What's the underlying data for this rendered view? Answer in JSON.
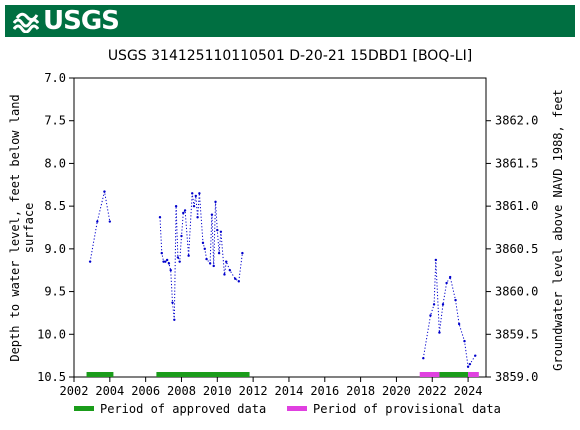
{
  "banner": {
    "logo_text": "USGS",
    "color": "#006f41"
  },
  "chart_data": {
    "type": "scatter",
    "title": "USGS 314125110110501 D-20-21 15DBD1 [BOQ-LI]",
    "ylabel_left_line1": "Depth to water level, feet below land",
    "ylabel_left_line2": "surface",
    "ylabel_right": "Groundwater level above NAVD 1988, feet",
    "xlim": [
      2002,
      2025
    ],
    "ylim_left": [
      7.0,
      10.5
    ],
    "ylim_right": [
      3859.0,
      3862.5
    ],
    "x_ticks": [
      2002,
      2004,
      2006,
      2008,
      2010,
      2012,
      2014,
      2016,
      2018,
      2020,
      2022,
      2024
    ],
    "y_ticks_left": [
      "7.0",
      "7.5",
      "8.0",
      "8.5",
      "9.0",
      "9.5",
      "10.0",
      "10.5"
    ],
    "y_ticks_right": [
      "3862.0",
      "3861.5",
      "3861.0",
      "3860.5",
      "3860.0",
      "3859.5",
      "3859.0"
    ],
    "y_tick_values_left": [
      7.0,
      7.5,
      8.0,
      8.5,
      9.0,
      9.5,
      10.0,
      10.5
    ],
    "y_tick_values_right": [
      3862.0,
      3861.5,
      3861.0,
      3860.5,
      3860.0,
      3859.5,
      3859.0
    ],
    "series_color": "#0000cc",
    "segments": [
      [
        [
          2002.9,
          9.15
        ],
        [
          2003.3,
          8.68
        ],
        [
          2003.7,
          8.33
        ],
        [
          2004.0,
          8.68
        ]
      ],
      [
        [
          2006.8,
          8.63
        ],
        [
          2006.9,
          9.05
        ],
        [
          2007.0,
          9.15
        ],
        [
          2007.1,
          9.15
        ],
        [
          2007.2,
          9.13
        ],
        [
          2007.3,
          9.17
        ],
        [
          2007.4,
          9.25
        ],
        [
          2007.5,
          9.63
        ],
        [
          2007.6,
          9.83
        ],
        [
          2007.7,
          8.5
        ],
        [
          2007.8,
          9.1
        ],
        [
          2007.9,
          9.15
        ],
        [
          2008.0,
          8.85
        ],
        [
          2008.1,
          8.58
        ],
        [
          2008.2,
          8.55
        ],
        [
          2008.4,
          9.08
        ],
        [
          2008.6,
          8.35
        ],
        [
          2008.7,
          8.5
        ],
        [
          2008.8,
          8.38
        ],
        [
          2008.9,
          8.63
        ],
        [
          2009.0,
          8.35
        ],
        [
          2009.2,
          8.93
        ],
        [
          2009.3,
          9.0
        ],
        [
          2009.4,
          9.12
        ],
        [
          2009.6,
          9.17
        ],
        [
          2009.7,
          8.6
        ],
        [
          2009.8,
          9.2
        ],
        [
          2009.9,
          8.45
        ],
        [
          2010.0,
          8.78
        ],
        [
          2010.1,
          9.05
        ],
        [
          2010.2,
          8.8
        ],
        [
          2010.4,
          9.3
        ],
        [
          2010.5,
          9.15
        ],
        [
          2010.7,
          9.25
        ],
        [
          2011.0,
          9.35
        ],
        [
          2011.2,
          9.38
        ],
        [
          2011.4,
          9.05
        ]
      ],
      [
        [
          2021.5,
          10.28
        ],
        [
          2021.9,
          9.78
        ],
        [
          2022.1,
          9.65
        ],
        [
          2022.2,
          9.13
        ],
        [
          2022.4,
          9.98
        ],
        [
          2022.6,
          9.65
        ],
        [
          2022.8,
          9.4
        ],
        [
          2023.0,
          9.33
        ],
        [
          2023.3,
          9.6
        ],
        [
          2023.5,
          9.88
        ],
        [
          2023.8,
          10.08
        ],
        [
          2024.0,
          10.38
        ],
        [
          2024.1,
          10.35
        ],
        [
          2024.4,
          10.25
        ]
      ]
    ],
    "periods": [
      {
        "status": "approved",
        "start": 2002.7,
        "end": 2004.2,
        "color": "#1a9c1a"
      },
      {
        "status": "approved",
        "start": 2006.6,
        "end": 2011.8,
        "color": "#1a9c1a"
      },
      {
        "status": "provisional",
        "start": 2021.3,
        "end": 2022.4,
        "color": "#e040e0"
      },
      {
        "status": "approved",
        "start": 2022.4,
        "end": 2024.0,
        "color": "#1a9c1a"
      },
      {
        "status": "provisional",
        "start": 2024.0,
        "end": 2024.6,
        "color": "#e040e0"
      }
    ],
    "legend": [
      {
        "label": "Period of approved data",
        "color": "#1a9c1a"
      },
      {
        "label": "Period of provisional data",
        "color": "#e040e0"
      }
    ]
  }
}
